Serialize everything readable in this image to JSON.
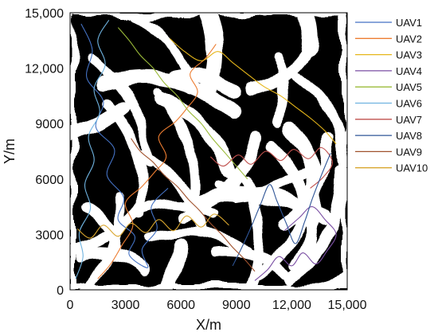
{
  "chart_data": {
    "type": "line",
    "title": "",
    "xlabel": "X/m",
    "ylabel": "Y/m",
    "xlim": [
      0,
      15000
    ],
    "ylim": [
      0,
      15000
    ],
    "x_ticks": [
      "0",
      "3000",
      "6000",
      "9000",
      "12,000",
      "15,000"
    ],
    "y_ticks": [
      "0",
      "3000",
      "6000",
      "9000",
      "12,000",
      "15,000"
    ],
    "legend_position": "right",
    "grid": false,
    "background": "black-and-white occupancy map",
    "series": [
      {
        "name": "UAV1",
        "color": "#4472c4",
        "x": [
          600,
          1200,
          900,
          1800,
          1400,
          2400,
          2000,
          2900,
          2600,
          3500,
          3200,
          4200,
          3900,
          4700,
          4400,
          5300
        ],
        "y": [
          14400,
          13000,
          11500,
          10200,
          8800,
          7600,
          6200,
          5000,
          3800,
          2900,
          1900,
          1200,
          2200,
          3300,
          4500,
          5500
        ]
      },
      {
        "name": "UAV2",
        "color": "#ed7d31",
        "x": [
          1500,
          2200,
          2800,
          3400,
          3000,
          3900,
          4600,
          5200,
          4800,
          5700,
          6300,
          6900,
          6500,
          7300,
          7900
        ],
        "y": [
          600,
          1400,
          2400,
          3500,
          4700,
          5600,
          6400,
          7200,
          8300,
          9100,
          9800,
          10700,
          11700,
          12500,
          13300
        ]
      },
      {
        "name": "UAV3",
        "color": "#e6b61a",
        "x": [
          5400,
          6200,
          7100,
          8000,
          8800,
          9700,
          10500,
          11400,
          12200,
          13000,
          13800,
          14400
        ],
        "y": [
          13600,
          12900,
          12400,
          12900,
          12300,
          11600,
          11000,
          10500,
          9900,
          9300,
          8600,
          7900
        ]
      },
      {
        "name": "UAV4",
        "color": "#7a4ea3",
        "x": [
          10000,
          10700,
          11300,
          12000,
          12600,
          13300,
          13900,
          14400,
          13800,
          13100,
          12400,
          11600
        ],
        "y": [
          500,
          1100,
          1800,
          1300,
          2000,
          1400,
          2100,
          3000,
          3800,
          4500,
          3900,
          3200
        ]
      },
      {
        "name": "UAV5",
        "color": "#9bbb3a",
        "x": [
          2600,
          3200,
          3800,
          4500,
          5100,
          5800,
          6400,
          7100,
          7700,
          8400,
          9000,
          9600
        ],
        "y": [
          14200,
          13500,
          12700,
          12000,
          11200,
          10500,
          9700,
          9000,
          8200,
          7400,
          6700,
          6000
        ]
      },
      {
        "name": "UAV6",
        "color": "#6fb3e0",
        "x": [
          300,
          700,
          500,
          1100,
          800,
          1300,
          1000,
          1600,
          1300,
          1900,
          1500,
          2100
        ],
        "y": [
          600,
          1800,
          3100,
          4400,
          5700,
          7000,
          8300,
          9600,
          10900,
          12200,
          13500,
          14600
        ]
      },
      {
        "name": "UAV7",
        "color": "#c0504d",
        "x": [
          7600,
          8300,
          9100,
          9800,
          10600,
          11400,
          12100,
          12900,
          13600,
          14200,
          13700,
          13000
        ],
        "y": [
          7200,
          6700,
          7300,
          6800,
          7500,
          7000,
          7600,
          7100,
          7700,
          6900,
          6100,
          5500
        ]
      },
      {
        "name": "UAV8",
        "color": "#2f5597",
        "x": [
          8800,
          9300,
          9800,
          10300,
          10800,
          11200,
          11700,
          12200,
          12700,
          13100,
          13600,
          14100
        ],
        "y": [
          1300,
          2300,
          3400,
          4600,
          5700,
          4800,
          3600,
          2500,
          3700,
          4900,
          6200,
          7400
        ]
      },
      {
        "name": "UAV9",
        "color": "#a0522d",
        "x": [
          3300,
          3800,
          4500,
          5100,
          5800,
          6400,
          7000,
          7600,
          8200,
          8800,
          9400,
          10000
        ],
        "y": [
          8200,
          7500,
          6900,
          6200,
          5600,
          4900,
          4300,
          3600,
          3000,
          2300,
          1700,
          1000
        ]
      },
      {
        "name": "UAV10",
        "color": "#d9a62e",
        "x": [
          400,
          1100,
          1800,
          2600,
          3300,
          4100,
          4800,
          5600,
          6300,
          7100,
          7800,
          8600
        ],
        "y": [
          3300,
          2800,
          3500,
          2900,
          3600,
          3100,
          3800,
          3200,
          4000,
          3400,
          4100,
          3500
        ]
      }
    ]
  }
}
